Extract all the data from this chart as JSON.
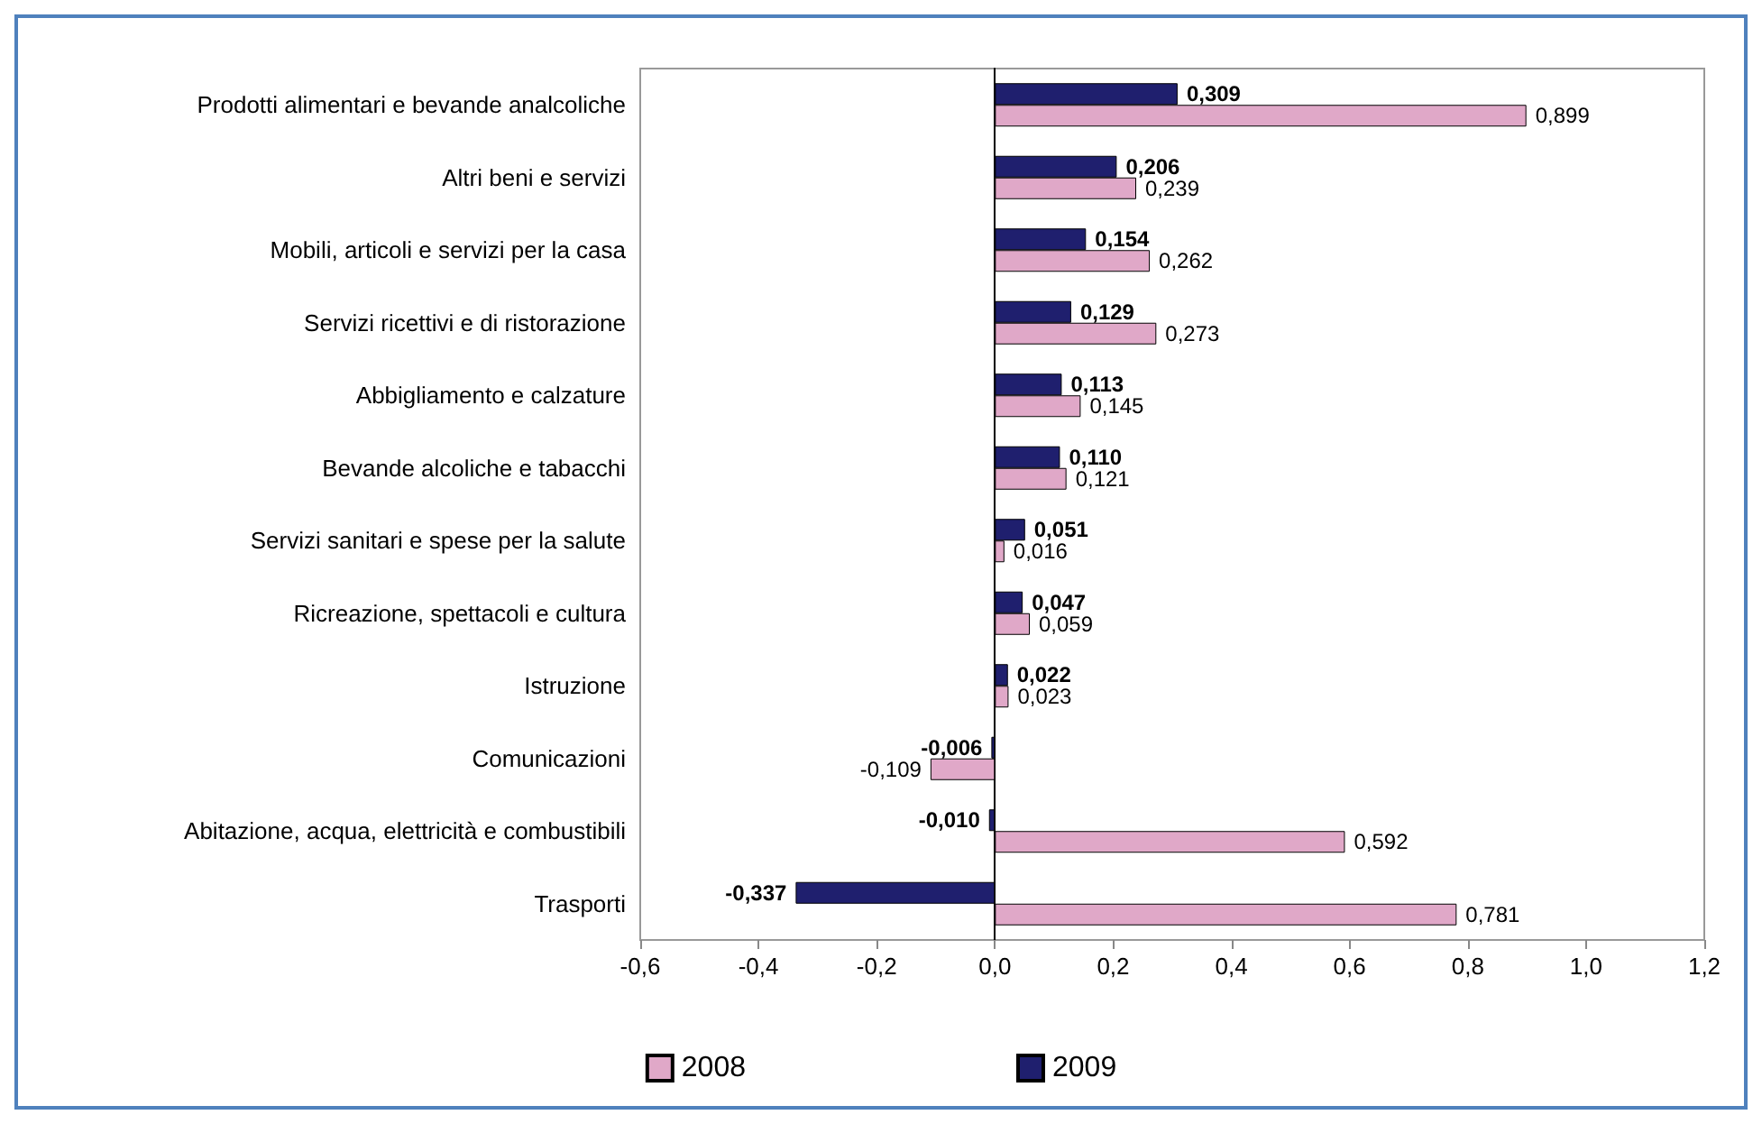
{
  "chart_data": {
    "type": "bar",
    "orientation": "horizontal",
    "categories": [
      "Prodotti alimentari e bevande analcoliche",
      "Altri beni e servizi",
      "Mobili, articoli e servizi per la casa",
      "Servizi ricettivi e di ristorazione",
      "Abbigliamento e calzature",
      "Bevande alcoliche e tabacchi",
      "Servizi sanitari e spese per la salute",
      "Ricreazione, spettacoli e cultura",
      "Istruzione",
      "Comunicazioni",
      "Abitazione, acqua, elettricità e combustibili",
      "Trasporti"
    ],
    "series": [
      {
        "name": "2008",
        "color": "#e0a8c8",
        "values": [
          0.899,
          0.239,
          0.262,
          0.273,
          0.145,
          0.121,
          0.016,
          0.059,
          0.023,
          -0.109,
          0.592,
          0.781
        ],
        "value_labels": [
          "0,899",
          "0,239",
          "0,262",
          "0,273",
          "0,145",
          "0,121",
          "0,016",
          "0,059",
          "0,023",
          "-0,109",
          "0,592",
          "0,781"
        ]
      },
      {
        "name": "2009",
        "color": "#1f1f6e",
        "values": [
          0.309,
          0.206,
          0.154,
          0.129,
          0.113,
          0.11,
          0.051,
          0.047,
          0.022,
          -0.006,
          -0.01,
          -0.337
        ],
        "value_labels": [
          "0,309",
          "0,206",
          "0,154",
          "0,129",
          "0,113",
          "0,110",
          "0,051",
          "0,047",
          "0,022",
          "-0,006",
          "-0,010",
          "-0,337"
        ]
      }
    ],
    "xlim": [
      -0.6,
      1.2
    ],
    "xticks": [
      {
        "value": -0.6,
        "label": "-0,6"
      },
      {
        "value": -0.4,
        "label": "-0,4"
      },
      {
        "value": -0.2,
        "label": "-0,2"
      },
      {
        "value": 0,
        "label": "0,0"
      },
      {
        "value": 0.2,
        "label": "0,2"
      },
      {
        "value": 0.4,
        "label": "0,4"
      },
      {
        "value": 0.6,
        "label": "0,6"
      },
      {
        "value": 0.8,
        "label": "0,8"
      },
      {
        "value": 1.0,
        "label": "1,0"
      },
      {
        "value": 1.2,
        "label": "1,2"
      }
    ],
    "legend": "bottom"
  }
}
